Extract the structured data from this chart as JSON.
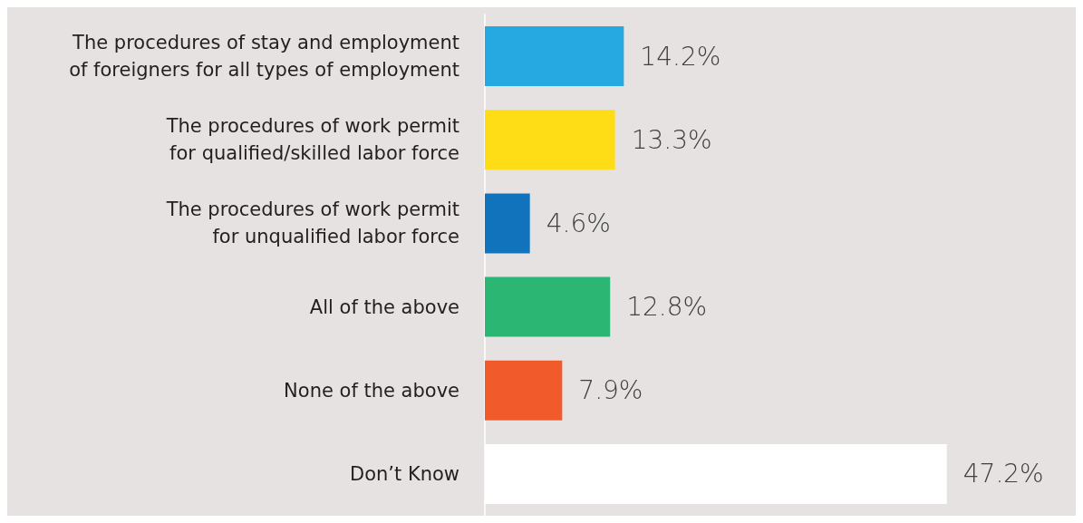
{
  "chart_data": {
    "type": "bar",
    "orientation": "horizontal",
    "categories": [
      "The procedures of stay and employment\nof foreigners for all types of employment",
      "The procedures of work permit\nfor qualified/skilled labor force",
      "The procedures of work permit\nfor unqualified labor force",
      "All of the above",
      "None of the above",
      "Don’t Know"
    ],
    "values": [
      14.2,
      13.3,
      4.6,
      12.8,
      7.9,
      47.2
    ],
    "colors": [
      "#25a9e0",
      "#fedd17",
      "#1173bb",
      "#2bb673",
      "#f15a2b",
      "#ffffff"
    ],
    "value_labels": [
      "14.2%",
      "13.3%",
      "4.6%",
      "12.8%",
      "7.9%",
      "47.2%"
    ]
  }
}
